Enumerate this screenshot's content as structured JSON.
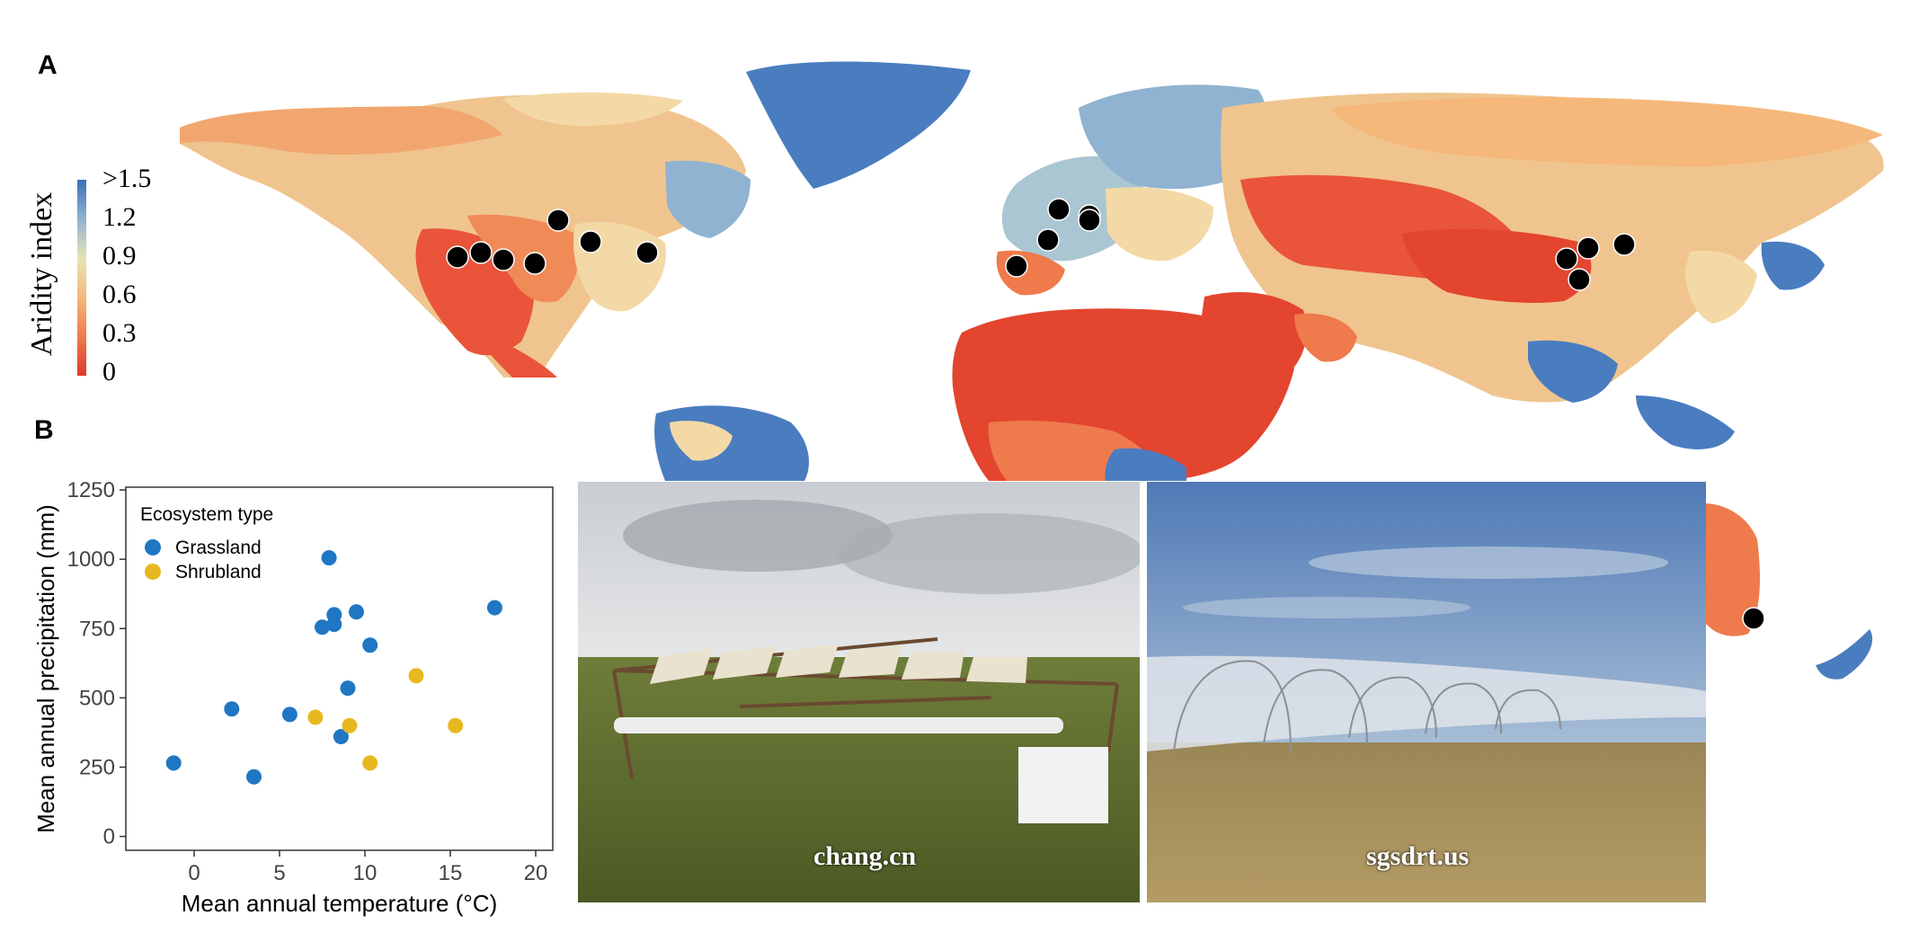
{
  "panels": {
    "a_label": "A",
    "b_label": "B"
  },
  "map": {
    "legend": {
      "title": "Aridity index",
      "ticks": [
        ">1.5",
        "1.2",
        "0.9",
        "0.6",
        "0.3",
        "0"
      ],
      "colors": [
        "#4a7dbf",
        "#8fb3d0",
        "#e8e3b5",
        "#f5b87a",
        "#ef7a4c",
        "#dc3a2b"
      ]
    },
    "colors": {
      "ocean": "#ffffff",
      "dry": "#e3452f",
      "semiarid": "#f29a63",
      "mid": "#f0d6a0",
      "humid": "#a9c6d2",
      "wet": "#4a7dbf",
      "site": "#000000"
    }
  },
  "chart_data": {
    "type": "scatter",
    "xlabel": "Mean annual temperature (°C)",
    "ylabel": "Mean annual precipitation (mm)",
    "xlim": [
      -4,
      21
    ],
    "ylim": [
      -50,
      1260
    ],
    "xticks": [
      "0",
      "5",
      "10",
      "15",
      "20"
    ],
    "yticks": [
      "0",
      "250",
      "500",
      "750",
      "1000",
      "1250"
    ],
    "legend": {
      "title": "Ecosystem type",
      "placement": "top-left"
    },
    "series": [
      {
        "name": "Grassland",
        "color": "#1f77c4",
        "points": [
          [
            -1.2,
            265
          ],
          [
            2.2,
            460
          ],
          [
            3.5,
            215
          ],
          [
            5.6,
            440
          ],
          [
            7.5,
            755
          ],
          [
            7.9,
            1005
          ],
          [
            8.2,
            800
          ],
          [
            8.2,
            765
          ],
          [
            8.6,
            360
          ],
          [
            9.0,
            535
          ],
          [
            9.5,
            810
          ],
          [
            10.3,
            690
          ],
          [
            17.6,
            825
          ]
        ]
      },
      {
        "name": "Shrubland",
        "color": "#e8b820",
        "points": [
          [
            7.1,
            430
          ],
          [
            9.1,
            400
          ],
          [
            10.3,
            265
          ],
          [
            13.0,
            580
          ],
          [
            15.3,
            400
          ]
        ]
      }
    ]
  },
  "photos": [
    {
      "caption": "chang.cn"
    },
    {
      "caption": "sgsdrt.us"
    }
  ]
}
